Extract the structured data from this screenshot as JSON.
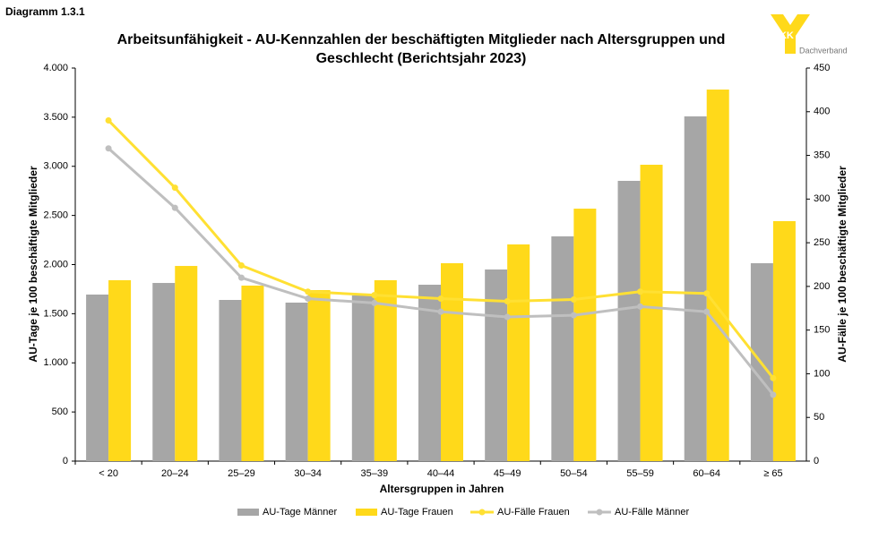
{
  "chart_data": {
    "type": "bar",
    "label": "Diagramm 1.3.1",
    "title": "Arbeitsunfähigkeit - AU-Kennzahlen der beschäftigten Mitglieder nach Altersgruppen und Geschlecht (Berichtsjahr 2023)",
    "logo": {
      "brand": "BKK",
      "subtitle": "Dachverband"
    },
    "x_label": "Altersgruppen in Jahren",
    "y_label": "AU-Tage je 100 beschäftigte Mitglieder",
    "y2_label": "AU-Fälle je 100 beschäftigte Mitglieder",
    "categories": [
      "< 20",
      "20–24",
      "25–29",
      "30–34",
      "35–39",
      "40–44",
      "45–49",
      "50–54",
      "55–59",
      "60–64",
      "≥ 65"
    ],
    "series": [
      {
        "name": "AU-Tage Männer",
        "type": "bar",
        "color": "#a6a6a6",
        "values": [
          1695,
          1813,
          1640,
          1613,
          1686,
          1795,
          1950,
          2287,
          2852,
          3508,
          2014
        ]
      },
      {
        "name": "AU-Tage Frauen",
        "type": "bar",
        "color": "#ffd91a",
        "values": [
          1841,
          1986,
          1786,
          1740,
          1841,
          2014,
          2205,
          2569,
          3016,
          3781,
          2442
        ]
      },
      {
        "name": "AU-Fälle Frauen",
        "type": "line",
        "axis": "y2",
        "color": "#ffe033",
        "values": [
          390,
          313,
          224,
          194,
          190,
          186,
          183,
          185,
          194,
          192,
          95
        ]
      },
      {
        "name": "AU-Fälle Männer",
        "type": "line",
        "axis": "y2",
        "color": "#bfbfbf",
        "values": [
          358,
          290,
          210,
          186,
          181,
          171,
          165,
          167,
          177,
          171,
          76
        ]
      }
    ],
    "ylim": [
      0,
      4000
    ],
    "yticks": [
      0,
      500,
      {
        "value": 1000,
        "label": "1.000"
      },
      {
        "value": 1500,
        "label": "1.500"
      },
      {
        "value": 2000,
        "label": "2.000"
      },
      {
        "value": 2500,
        "label": "2.500"
      },
      {
        "value": 3000,
        "label": "3.000"
      },
      {
        "value": 3500,
        "label": "3.500"
      },
      {
        "value": 4000,
        "label": "4.000"
      }
    ],
    "y2lim": [
      0,
      450
    ],
    "y2ticks": [
      0,
      50,
      100,
      150,
      200,
      250,
      300,
      350,
      400,
      450
    ],
    "legend": "bottom"
  }
}
